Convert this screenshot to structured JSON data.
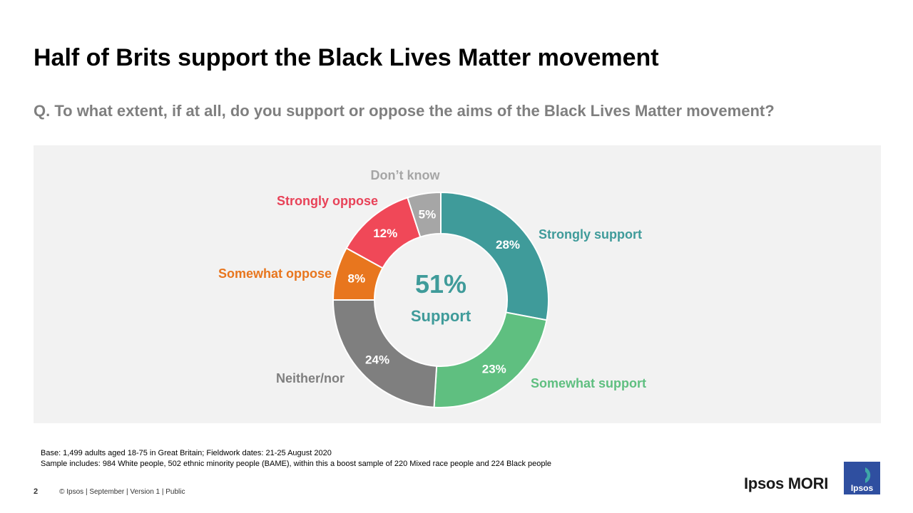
{
  "header": {
    "title": "Half of Brits support the Black Lives Matter movement",
    "question": "Q. To what extent, if at all, do you support or oppose the aims of the Black Lives Matter movement?"
  },
  "chart_data": {
    "type": "pie",
    "center_label": {
      "value": "51%",
      "text": "Support"
    },
    "slices": [
      {
        "name": "Strongly support",
        "value": 28,
        "label": "28%",
        "color": "#3f9b9a",
        "legend_color": "#3f9b9a"
      },
      {
        "name": "Somewhat support",
        "value": 23,
        "label": "23%",
        "color": "#5fbf80",
        "legend_color": "#5fbf80"
      },
      {
        "name": "Neither/nor",
        "value": 24,
        "label": "24%",
        "color": "#7f7f7f",
        "legend_color": "#7f7f7f"
      },
      {
        "name": "Somewhat oppose",
        "value": 8,
        "label": "8%",
        "color": "#e8761e",
        "legend_color": "#e8761e"
      },
      {
        "name": "Strongly oppose",
        "value": 12,
        "label": "12%",
        "color": "#f04858",
        "legend_color": "#e84258"
      },
      {
        "name": "Don’t know",
        "value": 5,
        "label": "5%",
        "color": "#a6a6a6",
        "legend_color": "#a6a6a6"
      }
    ]
  },
  "notes": {
    "base": "Base: 1,499 adults aged 18-75 in Great Britain; Fieldwork dates: 21-25 August 2020",
    "sample": "Sample includes: 984 White people,  502 ethnic minority people (BAME),  within this a boost sample of 220 Mixed race people and 224 Black people"
  },
  "footer": {
    "page_number": "2",
    "meta": "© Ipsos | September | Version 1 | Public"
  },
  "brand": {
    "name": "Ipsos MORI",
    "logo_text": "Ipsos",
    "logo_color": "#2f4fa0",
    "logo_accent": "#3fa8a8"
  }
}
